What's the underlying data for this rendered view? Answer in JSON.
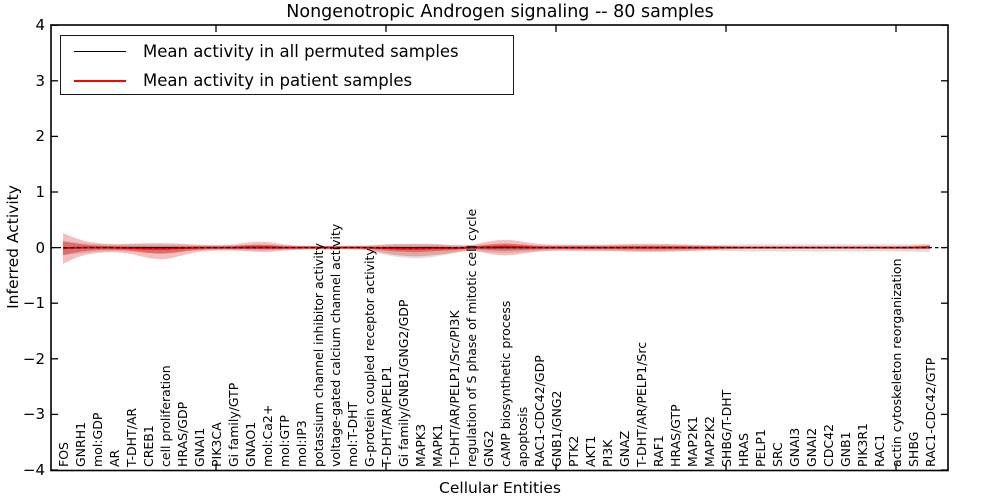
{
  "figure": {
    "title": "Nongenotropic Androgen signaling -- 80 samples",
    "background": "#ffffff"
  },
  "chart_data": {
    "type": "area",
    "title": "Nongenotropic Androgen signaling -- 80 samples",
    "xlabel": "Cellular Entities",
    "ylabel": "Inferred Activity",
    "ylim": [
      -4,
      4
    ],
    "grid": false,
    "legend_position": "upper left",
    "yticks": [
      {
        "value": 4,
        "label": "4"
      },
      {
        "value": 3,
        "label": "3"
      },
      {
        "value": 2,
        "label": "2"
      },
      {
        "value": 1,
        "label": "1"
      },
      {
        "value": 0,
        "label": "0"
      },
      {
        "value": -1,
        "label": "−1"
      },
      {
        "value": -2,
        "label": "−2"
      },
      {
        "value": -3,
        "label": "−3"
      },
      {
        "value": -4,
        "label": "−4"
      }
    ],
    "x_major_tick_indices": [
      9,
      19,
      29,
      39,
      49
    ],
    "categories": [
      "FOS",
      "GNRH1",
      "mol:GDP",
      "AR",
      "T-DHT/AR",
      "CREB1",
      "cell proliferation",
      "HRAS/GDP",
      "GNAI1",
      "PIK3CA",
      "Gi family/GTP",
      "GNAO1",
      "mol:Ca2+",
      "mol:GTP",
      "mol:IP3",
      "potassium channel inhibitor activity",
      "voltage-gated calcium channel activity",
      "mol:T-DHT",
      "G-protein coupled receptor activity",
      "T-DHT/AR/PELP1",
      "Gi family/GNB1/GNG2/GDP",
      "MAPK3",
      "MAPK1",
      "T-DHT/AR/PELP1/Src/PI3K",
      "regulation of S phase of mitotic cell cycle",
      "GNG2",
      "cAMP biosynthetic process",
      "apoptosis",
      "RAC1-CDC42/GDP",
      "GNB1/GNG2",
      "PTK2",
      "AKT1",
      "PI3K",
      "GNAZ",
      "T-DHT/AR/PELP1/Src",
      "RAF1",
      "HRAS/GTP",
      "MAP2K1",
      "MAP2K2",
      "SHBG/T-DHT",
      "HRAS",
      "PELP1",
      "SRC",
      "GNAI3",
      "GNAI2",
      "CDC42",
      "GNB1",
      "PIK3R1",
      "RAC1",
      "actin cytoskeleton reorganization",
      "SHBG",
      "RAC1-CDC42/GTP"
    ],
    "series": [
      {
        "name": "Mean activity in all permuted samples",
        "color": "#000000",
        "values": [
          0,
          0,
          0,
          0,
          0,
          0,
          0,
          0,
          0,
          0,
          0,
          0,
          0,
          0,
          0,
          0,
          0,
          0,
          0,
          0,
          0,
          0,
          0,
          0,
          0,
          0,
          0,
          0,
          0,
          0,
          0,
          0,
          0,
          0,
          0,
          0,
          0,
          0,
          0,
          0,
          0,
          0,
          0,
          0,
          0,
          0,
          0,
          0,
          0,
          0,
          0,
          0
        ]
      },
      {
        "name": "Mean activity in patient samples",
        "color": "#ff0000",
        "values": [
          -0.01,
          0,
          0,
          0,
          -0.01,
          -0.02,
          -0.02,
          -0.01,
          0,
          0,
          0,
          0.01,
          0.01,
          0,
          0,
          0,
          0,
          0,
          0,
          -0.01,
          -0.02,
          -0.02,
          -0.01,
          -0.01,
          0,
          0.01,
          0.02,
          0.01,
          0,
          0,
          0,
          0,
          0,
          0,
          0,
          0,
          0,
          0,
          0,
          0,
          0,
          0,
          0,
          0,
          0,
          0,
          0,
          0,
          0,
          0,
          0,
          0.01
        ]
      }
    ],
    "bands": [
      {
        "name": "permuted samples spread",
        "series": 0,
        "color": "#8c8c8c",
        "opacity": 0.28,
        "upper": [
          0.12,
          0.08,
          0.06,
          0.05,
          0.06,
          0.06,
          0.06,
          0.05,
          0.04,
          0.04,
          0.04,
          0.05,
          0.05,
          0.04,
          0.03,
          0.03,
          0.03,
          0.03,
          0.04,
          0.05,
          0.06,
          0.06,
          0.05,
          0.04,
          0.04,
          0.05,
          0.06,
          0.05,
          0.04,
          0.04,
          0.04,
          0.04,
          0.04,
          0.05,
          0.05,
          0.05,
          0.05,
          0.04,
          0.04,
          0.05,
          0.06,
          0.06,
          0.06,
          0.06,
          0.06,
          0.06,
          0.06,
          0.06,
          0.06,
          0.06,
          0.06,
          0.07
        ],
        "lower": [
          0.14,
          0.1,
          0.07,
          0.06,
          0.07,
          0.1,
          0.12,
          0.08,
          0.05,
          0.04,
          0.04,
          0.05,
          0.05,
          0.04,
          0.03,
          0.03,
          0.03,
          0.03,
          0.04,
          0.14,
          0.18,
          0.2,
          0.16,
          0.1,
          0.05,
          0.08,
          0.1,
          0.08,
          0.06,
          0.05,
          0.05,
          0.05,
          0.05,
          0.06,
          0.06,
          0.06,
          0.06,
          0.05,
          0.05,
          0.06,
          0.07,
          0.07,
          0.07,
          0.07,
          0.07,
          0.07,
          0.07,
          0.07,
          0.07,
          0.07,
          0.07,
          0.08
        ]
      },
      {
        "name": "patient samples spread (outer)",
        "series": 1,
        "color": "#dd2c2c",
        "opacity": 0.3,
        "upper": [
          0.27,
          0.13,
          0.08,
          0.06,
          0.08,
          0.1,
          0.1,
          0.08,
          0.05,
          0.04,
          0.05,
          0.09,
          0.1,
          0.05,
          0.03,
          0.03,
          0.03,
          0.03,
          0.03,
          0.07,
          0.09,
          0.09,
          0.08,
          0.05,
          0.04,
          0.1,
          0.13,
          0.1,
          0.06,
          0.05,
          0.05,
          0.05,
          0.05,
          0.06,
          0.07,
          0.07,
          0.06,
          0.05,
          0.04,
          0.03,
          0.02,
          0.02,
          0.02,
          0.02,
          0.02,
          0.02,
          0.02,
          0.02,
          0.02,
          0.02,
          0.03,
          0.04
        ],
        "lower": [
          0.28,
          0.15,
          0.09,
          0.08,
          0.1,
          0.17,
          0.2,
          0.13,
          0.07,
          0.05,
          0.05,
          0.08,
          0.1,
          0.05,
          0.04,
          0.03,
          0.03,
          0.03,
          0.04,
          0.1,
          0.13,
          0.14,
          0.12,
          0.08,
          0.04,
          0.12,
          0.17,
          0.12,
          0.07,
          0.05,
          0.06,
          0.06,
          0.06,
          0.07,
          0.08,
          0.08,
          0.07,
          0.06,
          0.05,
          0.03,
          0.02,
          0.02,
          0.02,
          0.02,
          0.02,
          0.02,
          0.02,
          0.02,
          0.02,
          0.03,
          0.03,
          0.04
        ]
      },
      {
        "name": "patient samples spread (inner)",
        "series": 1,
        "color": "#d02020",
        "opacity": 0.42,
        "scale_of_band": 1,
        "scale": 0.45
      }
    ],
    "zero_line": {
      "style": "dashed",
      "color": "#000000",
      "dash": [
        3.5,
        3
      ]
    }
  }
}
